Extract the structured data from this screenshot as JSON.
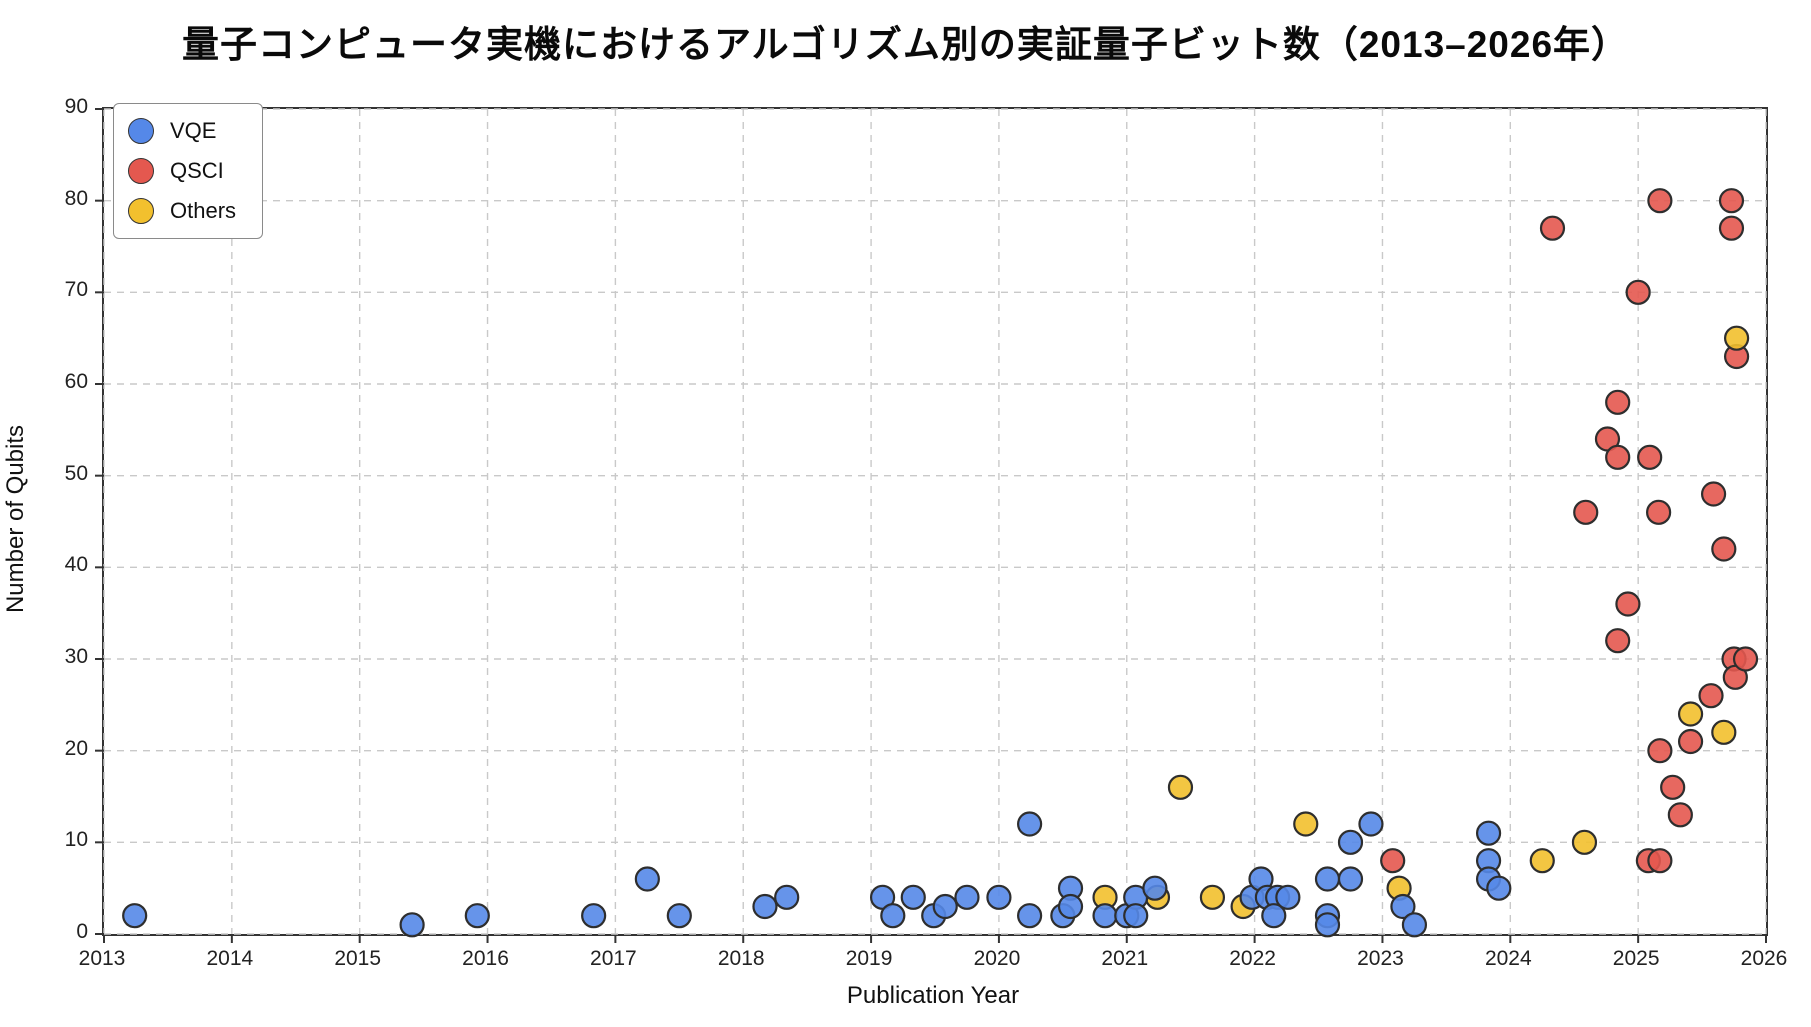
{
  "chart_data": {
    "type": "scatter",
    "title": "量子コンピュータ実機におけるアルゴリズム別の実証量子ビット数（2013–2026年）",
    "xlabel": "Publication Year",
    "ylabel": "Number of Qubits",
    "xlim": [
      2013,
      2026
    ],
    "ylim": [
      0,
      90
    ],
    "x_ticks": [
      2013,
      2014,
      2015,
      2016,
      2017,
      2018,
      2019,
      2020,
      2021,
      2022,
      2023,
      2024,
      2025,
      2026
    ],
    "y_ticks": [
      0,
      10,
      20,
      30,
      40,
      50,
      60,
      70,
      80,
      90
    ],
    "grid": true,
    "grid_style": "dashed",
    "legend_position": "upper-left",
    "marker_edge_color": "#2e2e2e",
    "series": [
      {
        "name": "QSCI",
        "color": "#e4584f",
        "points": [
          [
            2023.08,
            8
          ],
          [
            2024.33,
            77
          ],
          [
            2024.59,
            46
          ],
          [
            2024.76,
            54
          ],
          [
            2024.84,
            58
          ],
          [
            2024.84,
            52
          ],
          [
            2024.84,
            32
          ],
          [
            2024.92,
            36
          ],
          [
            2025.0,
            70
          ],
          [
            2025.08,
            8
          ],
          [
            2025.09,
            52
          ],
          [
            2025.16,
            46
          ],
          [
            2025.17,
            80
          ],
          [
            2025.17,
            8
          ],
          [
            2025.17,
            20
          ],
          [
            2025.27,
            16
          ],
          [
            2025.33,
            13
          ],
          [
            2025.41,
            21
          ],
          [
            2025.57,
            26
          ],
          [
            2025.59,
            48
          ],
          [
            2025.67,
            42
          ],
          [
            2025.73,
            80
          ],
          [
            2025.73,
            77
          ],
          [
            2025.75,
            30
          ],
          [
            2025.76,
            28
          ],
          [
            2025.77,
            63
          ],
          [
            2025.84,
            30
          ]
        ]
      },
      {
        "name": "Others",
        "color": "#f2c02e",
        "points": [
          [
            2020.83,
            4
          ],
          [
            2021.24,
            4
          ],
          [
            2021.42,
            16
          ],
          [
            2021.67,
            4
          ],
          [
            2021.91,
            3
          ],
          [
            2022.4,
            12
          ],
          [
            2023.13,
            5
          ],
          [
            2024.25,
            8
          ],
          [
            2024.58,
            10
          ],
          [
            2025.41,
            24
          ],
          [
            2025.67,
            22
          ],
          [
            2025.77,
            65
          ]
        ]
      },
      {
        "name": "VQE",
        "color": "#5588e8",
        "points": [
          [
            2013.24,
            2
          ],
          [
            2015.41,
            1
          ],
          [
            2015.92,
            2
          ],
          [
            2016.83,
            2
          ],
          [
            2017.25,
            6
          ],
          [
            2017.5,
            2
          ],
          [
            2018.17,
            3
          ],
          [
            2018.34,
            4
          ],
          [
            2019.09,
            4
          ],
          [
            2019.17,
            2
          ],
          [
            2019.33,
            4
          ],
          [
            2019.49,
            2
          ],
          [
            2019.58,
            3
          ],
          [
            2019.75,
            4
          ],
          [
            2020.0,
            4
          ],
          [
            2020.24,
            12
          ],
          [
            2020.24,
            2
          ],
          [
            2020.5,
            2
          ],
          [
            2020.56,
            5
          ],
          [
            2020.56,
            3
          ],
          [
            2020.83,
            2
          ],
          [
            2021.0,
            2
          ],
          [
            2021.07,
            4
          ],
          [
            2021.07,
            2
          ],
          [
            2021.22,
            5
          ],
          [
            2021.98,
            4
          ],
          [
            2022.05,
            6
          ],
          [
            2022.1,
            4
          ],
          [
            2022.18,
            4
          ],
          [
            2022.26,
            4
          ],
          [
            2022.15,
            2
          ],
          [
            2022.57,
            6
          ],
          [
            2022.75,
            6
          ],
          [
            2022.57,
            2
          ],
          [
            2022.57,
            1
          ],
          [
            2022.75,
            10
          ],
          [
            2022.91,
            12
          ],
          [
            2023.16,
            3
          ],
          [
            2023.25,
            1
          ],
          [
            2023.83,
            11
          ],
          [
            2023.83,
            8
          ],
          [
            2023.83,
            6
          ],
          [
            2023.91,
            5
          ]
        ]
      }
    ],
    "legend_order": [
      "VQE",
      "QSCI",
      "Others"
    ]
  }
}
